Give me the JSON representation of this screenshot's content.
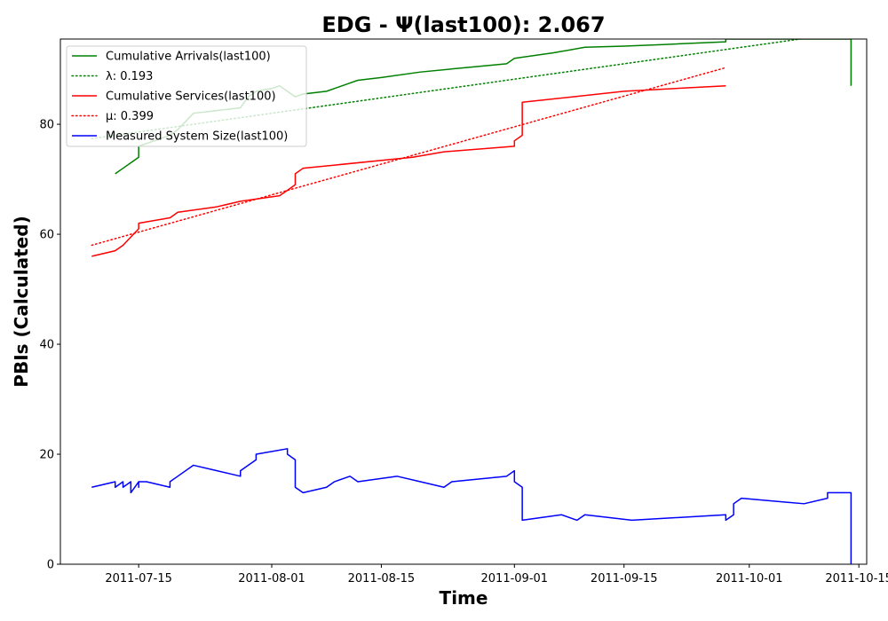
{
  "chart_data": {
    "type": "line",
    "title": "EDG -  Ψ(last100): 2.067",
    "xlabel": "Time",
    "ylabel": "PBIs (Calculated)",
    "x_type": "date",
    "xlim": [
      "2011-07-05",
      "2011-10-16"
    ],
    "ylim": [
      0,
      95.5
    ],
    "x_ticks": [
      "2011-07-15",
      "2011-08-01",
      "2011-08-15",
      "2011-09-01",
      "2011-09-15",
      "2011-10-01",
      "2011-10-15"
    ],
    "y_ticks": [
      0,
      20,
      40,
      60,
      80
    ],
    "grid": false,
    "legend_position": "top-left",
    "series": [
      {
        "name": "Cumulative Arrivals(last100)",
        "color": "#008000",
        "style": "solid",
        "x": [
          "2011-07-12",
          "2011-07-13",
          "2011-07-14",
          "2011-07-15",
          "2011-07-15",
          "2011-07-17",
          "2011-07-19",
          "2011-07-20",
          "2011-07-22",
          "2011-07-25",
          "2011-07-28",
          "2011-07-29",
          "2011-07-30",
          "2011-08-01",
          "2011-08-02",
          "2011-08-03",
          "2011-08-04",
          "2011-08-05",
          "2011-08-08",
          "2011-08-10",
          "2011-08-11",
          "2011-08-12",
          "2011-08-15",
          "2011-08-20",
          "2011-08-25",
          "2011-08-31",
          "2011-09-01",
          "2011-09-06",
          "2011-09-10",
          "2011-09-15",
          "2011-09-20",
          "2011-09-28",
          "2011-09-28",
          "2011-10-14",
          "2011-10-14"
        ],
        "y": [
          71,
          72,
          73,
          74,
          76,
          77,
          78,
          79,
          82,
          82.5,
          83,
          85,
          86,
          86.5,
          87,
          86,
          85,
          85.5,
          86,
          87,
          87.5,
          88,
          88.5,
          89.5,
          90.2,
          91,
          92,
          93,
          94,
          94.2,
          94.5,
          95,
          95.5,
          95.5,
          87
        ]
      },
      {
        "name": "λ: 0.193",
        "color": "#008000",
        "style": "dotted",
        "x": [
          "2011-07-09",
          "2011-10-08"
        ],
        "y": [
          77.4,
          95.6
        ]
      },
      {
        "name": "Cumulative Services(last100)",
        "color": "#ff0000",
        "style": "solid",
        "x": [
          "2011-07-09",
          "2011-07-12",
          "2011-07-13",
          "2011-07-14",
          "2011-07-15",
          "2011-07-15",
          "2011-07-19",
          "2011-07-20",
          "2011-07-25",
          "2011-07-28",
          "2011-08-02",
          "2011-08-03",
          "2011-08-04",
          "2011-08-04",
          "2011-08-05",
          "2011-08-19",
          "2011-08-23",
          "2011-09-01",
          "2011-09-01",
          "2011-09-02",
          "2011-09-02",
          "2011-09-15",
          "2011-09-28"
        ],
        "y": [
          56,
          57,
          58,
          59.5,
          61,
          62,
          63,
          64,
          65,
          66,
          67,
          68,
          69,
          71,
          72,
          74,
          75,
          76,
          77,
          78,
          84,
          86,
          87
        ]
      },
      {
        "name": "μ: 0.399",
        "color": "#ff0000",
        "style": "dotted",
        "x": [
          "2011-07-09",
          "2011-09-28"
        ],
        "y": [
          58,
          90.3
        ]
      },
      {
        "name": "Measured System Size(last100)",
        "color": "#0000ff",
        "style": "solid",
        "x": [
          "2011-07-09",
          "2011-07-12",
          "2011-07-12",
          "2011-07-13",
          "2011-07-13",
          "2011-07-14",
          "2011-07-14",
          "2011-07-15",
          "2011-07-15",
          "2011-07-15",
          "2011-07-16",
          "2011-07-19",
          "2011-07-19",
          "2011-07-20",
          "2011-07-20",
          "2011-07-22",
          "2011-07-25",
          "2011-07-28",
          "2011-07-28",
          "2011-07-30",
          "2011-07-30",
          "2011-08-03",
          "2011-08-03",
          "2011-08-04",
          "2011-08-04",
          "2011-08-05",
          "2011-08-08",
          "2011-08-09",
          "2011-08-11",
          "2011-08-12",
          "2011-08-17",
          "2011-08-20",
          "2011-08-23",
          "2011-08-24",
          "2011-08-31",
          "2011-09-01",
          "2011-09-01",
          "2011-09-02",
          "2011-09-02",
          "2011-09-07",
          "2011-09-09",
          "2011-09-10",
          "2011-09-16",
          "2011-09-28",
          "2011-09-28",
          "2011-09-29",
          "2011-09-29",
          "2011-09-30",
          "2011-10-08",
          "2011-10-11",
          "2011-10-11",
          "2011-10-14",
          "2011-10-14"
        ],
        "y": [
          14,
          15,
          14,
          15,
          14,
          15,
          13,
          15,
          14,
          15,
          15,
          14,
          15,
          16,
          16,
          18,
          17,
          16,
          17,
          19,
          20,
          21,
          20,
          19,
          14,
          13,
          14,
          15,
          16,
          15,
          16,
          15,
          14,
          15,
          16,
          17,
          15,
          14,
          8,
          9,
          8,
          9,
          8,
          9,
          8,
          9,
          11,
          12,
          11,
          12,
          13,
          13,
          0
        ]
      }
    ]
  }
}
